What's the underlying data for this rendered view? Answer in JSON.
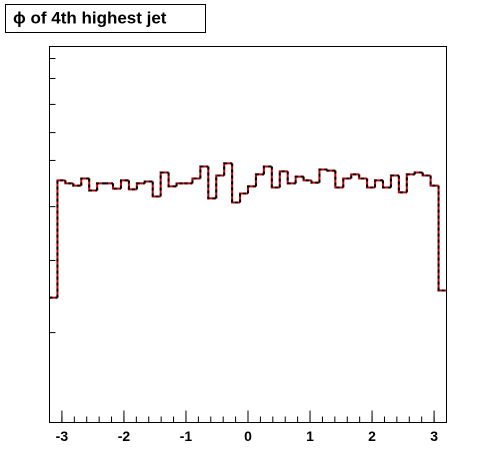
{
  "chart_data": {
    "type": "histogram",
    "title": "ϕ of 4th highest jet",
    "bins": [
      -3.2,
      -3.072,
      -2.944,
      -2.816,
      -2.688,
      -2.56,
      -2.432,
      -2.304,
      -2.176,
      -2.048,
      -1.92,
      -1.792,
      -1.664,
      -1.536,
      -1.408,
      -1.28,
      -1.152,
      -1.024,
      -0.896,
      -0.768,
      -0.64,
      -0.512,
      -0.384,
      -0.256,
      -0.128,
      0,
      0.128,
      0.256,
      0.384,
      0.512,
      0.64,
      0.768,
      0.896,
      1.024,
      1.152,
      1.28,
      1.408,
      1.536,
      1.664,
      1.792,
      1.92,
      2.048,
      2.176,
      2.304,
      2.432,
      2.56,
      2.688,
      2.816,
      2.944,
      3.072,
      3.2
    ],
    "series": [
      {
        "color": "#cc0000",
        "dashed": false,
        "values": [
          33.2,
          64.4,
          63.6,
          63.0,
          64.9,
          61.7,
          63.6,
          63.6,
          62.2,
          64.4,
          62.0,
          63.6,
          64.1,
          60.1,
          66.5,
          62.8,
          63.6,
          63.6,
          64.9,
          68.1,
          59.6,
          65.7,
          68.9,
          58.5,
          60.9,
          62.8,
          66.0,
          68.1,
          62.5,
          66.8,
          63.6,
          65.4,
          64.4,
          63.8,
          67.3,
          67.0,
          62.5,
          64.9,
          66.0,
          64.9,
          62.5,
          64.4,
          62.5,
          65.7,
          61.2,
          66.0,
          66.5,
          65.7,
          63.0,
          35.1
        ]
      },
      {
        "color": "#000000",
        "dashed": true,
        "values": [
          33.2,
          64.4,
          63.6,
          63.0,
          64.9,
          61.7,
          63.6,
          63.6,
          62.2,
          64.4,
          62.0,
          63.6,
          64.1,
          60.1,
          66.5,
          62.8,
          63.6,
          63.6,
          64.9,
          68.1,
          59.6,
          65.7,
          68.9,
          58.5,
          60.9,
          62.8,
          66.0,
          68.1,
          62.5,
          66.8,
          63.6,
          65.4,
          64.4,
          63.8,
          67.3,
          67.0,
          62.5,
          64.9,
          66.0,
          64.9,
          62.5,
          64.4,
          62.5,
          65.7,
          61.2,
          66.0,
          66.5,
          65.7,
          63.0,
          35.1
        ]
      }
    ],
    "xlim": [
      -3.2,
      3.2
    ],
    "xticks": [
      -3,
      -2,
      -1,
      0,
      1,
      2,
      3
    ],
    "xminorticks": [
      -3.2,
      -3.0,
      -2.8,
      -2.6,
      -2.4,
      -2.2,
      -2.0,
      -1.8,
      -1.6,
      -1.4,
      -1.2,
      -1.0,
      -0.8,
      -0.6,
      -0.4,
      -0.2,
      0,
      0.2,
      0.4,
      0.6,
      0.8,
      1.0,
      1.2,
      1.4,
      1.6,
      1.8,
      2.0,
      2.2,
      2.4,
      2.6,
      2.8,
      3.0,
      3.2
    ],
    "ylim": [
      0,
      100
    ],
    "yticks": [
      23.9,
      43.1,
      57.4,
      69.7,
      77.1,
      84.6,
      91.5,
      96.8
    ]
  }
}
